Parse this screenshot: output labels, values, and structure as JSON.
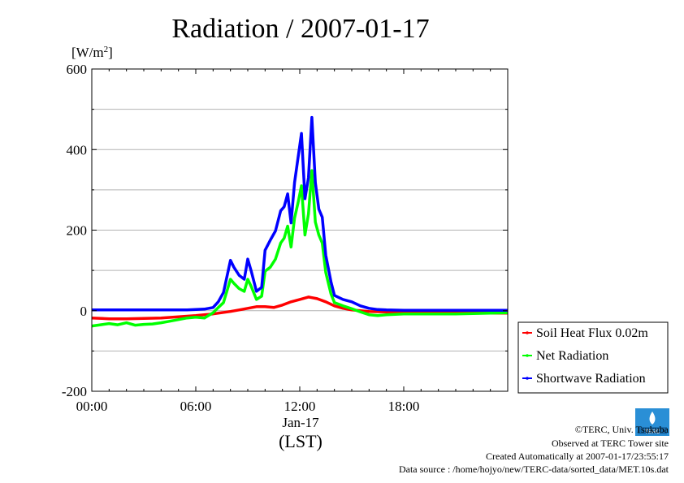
{
  "chart_data": {
    "type": "line",
    "title": "Radiation / 2007-01-17",
    "ylabel": "[W/m2]",
    "ylabel_base": "[W/m",
    "ylabel_sup": "2",
    "ylabel_close": "]",
    "ylim": [
      -200,
      600
    ],
    "yticks": [
      "600",
      "400",
      "200",
      "0",
      "-200"
    ],
    "ytick_values": [
      600,
      400,
      200,
      0,
      -200
    ],
    "xlim": [
      0,
      24
    ],
    "xticks": [
      "00:00",
      "06:00",
      "12:00",
      "18:00"
    ],
    "xtick_values": [
      0,
      6,
      12,
      18
    ],
    "xdate": "Jan-17",
    "xlabel": "(LST)",
    "grid": "horizontal",
    "legend_position": "bottom-right",
    "series": [
      {
        "name": "Soil Heat Flux 0.02m",
        "color": "#ff0000",
        "x": [
          0,
          1,
          2,
          3,
          4,
          5,
          6,
          7,
          8,
          8.5,
          9,
          9.5,
          10,
          10.5,
          11,
          11.5,
          12,
          12.5,
          13,
          13.5,
          14,
          14.5,
          15,
          16,
          17,
          18,
          19,
          20,
          21,
          22,
          23,
          24
        ],
        "values": [
          -18,
          -20,
          -20,
          -19,
          -18,
          -15,
          -12,
          -8,
          -2,
          2,
          6,
          10,
          10,
          8,
          14,
          22,
          28,
          34,
          30,
          22,
          12,
          6,
          2,
          -2,
          -3,
          -3,
          -4,
          -4,
          -5,
          -5,
          -6,
          -6
        ]
      },
      {
        "name": "Net Radiation",
        "color": "#00ff00",
        "x": [
          0,
          0.5,
          1,
          1.5,
          2,
          2.5,
          3,
          3.5,
          4,
          4.5,
          5,
          5.5,
          6,
          6.5,
          7,
          7.3,
          7.6,
          8,
          8.2,
          8.5,
          8.8,
          9,
          9.2,
          9.5,
          9.8,
          10,
          10.3,
          10.6,
          10.9,
          11.1,
          11.3,
          11.5,
          11.7,
          11.9,
          12.1,
          12.3,
          12.5,
          12.7,
          12.9,
          13.1,
          13.3,
          13.5,
          13.8,
          14,
          14.5,
          15,
          15.5,
          16,
          16.5,
          17,
          18,
          19,
          20,
          21,
          22,
          23,
          24
        ],
        "values": [
          -38,
          -35,
          -32,
          -35,
          -30,
          -36,
          -34,
          -33,
          -30,
          -26,
          -22,
          -18,
          -16,
          -18,
          -5,
          8,
          20,
          78,
          68,
          55,
          48,
          78,
          60,
          28,
          36,
          98,
          108,
          128,
          168,
          180,
          210,
          158,
          230,
          268,
          310,
          188,
          240,
          348,
          220,
          188,
          168,
          95,
          42,
          20,
          12,
          5,
          -3,
          -10,
          -12,
          -10,
          -8,
          -8,
          -8,
          -8,
          -7,
          -6,
          -5
        ]
      },
      {
        "name": "Shortwave Radiation",
        "color": "#0000ff",
        "x": [
          0,
          1,
          2,
          3,
          4,
          5,
          5.5,
          6,
          6.5,
          7,
          7.3,
          7.6,
          8,
          8.2,
          8.5,
          8.8,
          9,
          9.2,
          9.5,
          9.8,
          10,
          10.3,
          10.6,
          10.9,
          11.1,
          11.3,
          11.5,
          11.7,
          11.9,
          12.1,
          12.3,
          12.5,
          12.7,
          12.9,
          13.1,
          13.3,
          13.5,
          13.8,
          14,
          14.5,
          15,
          15.5,
          16,
          16.5,
          17,
          18,
          19,
          20,
          21,
          22,
          23,
          24
        ],
        "values": [
          2,
          2,
          2,
          2,
          2,
          2,
          2,
          3,
          4,
          8,
          22,
          45,
          125,
          108,
          88,
          78,
          128,
          98,
          48,
          58,
          150,
          175,
          198,
          248,
          258,
          290,
          218,
          318,
          380,
          440,
          278,
          330,
          480,
          318,
          252,
          232,
          138,
          72,
          38,
          28,
          22,
          12,
          6,
          3,
          2,
          1,
          1,
          1,
          1,
          1,
          1,
          1
        ]
      }
    ]
  },
  "footer": {
    "logo_text": "TERC",
    "copyright": "©TERC, Univ. Tsukuba",
    "observed": "Observed at TERC Tower site",
    "created": "Created Automatically at 2007-01-17/23:55:17",
    "source": "Data source : /home/hojyo/new/TERC-data/sorted_data/MET.10s.dat"
  }
}
